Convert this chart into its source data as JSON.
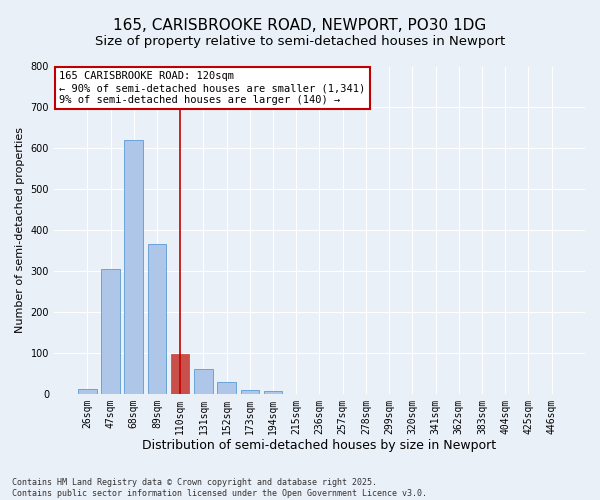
{
  "title_line1": "165, CARISBROOKE ROAD, NEWPORT, PO30 1DG",
  "title_line2": "Size of property relative to semi-detached houses in Newport",
  "xlabel": "Distribution of semi-detached houses by size in Newport",
  "ylabel": "Number of semi-detached properties",
  "categories": [
    "26sqm",
    "47sqm",
    "68sqm",
    "89sqm",
    "110sqm",
    "131sqm",
    "152sqm",
    "173sqm",
    "194sqm",
    "215sqm",
    "236sqm",
    "257sqm",
    "278sqm",
    "299sqm",
    "320sqm",
    "341sqm",
    "362sqm",
    "383sqm",
    "404sqm",
    "425sqm",
    "446sqm"
  ],
  "values": [
    12,
    305,
    620,
    365,
    97,
    60,
    28,
    10,
    8,
    0,
    0,
    0,
    0,
    0,
    0,
    0,
    0,
    0,
    0,
    0,
    0
  ],
  "bar_color": "#aec6e8",
  "bar_edge_color": "#5b9bd5",
  "highlight_bar_index": 4,
  "highlight_bar_color": "#c9504a",
  "highlight_bar_edge_color": "#c9504a",
  "vline_color": "#c00000",
  "ylim": [
    0,
    800
  ],
  "yticks": [
    0,
    100,
    200,
    300,
    400,
    500,
    600,
    700,
    800
  ],
  "background_color": "#eaf0f8",
  "grid_color": "#ffffff",
  "annotation_text": "165 CARISBROOKE ROAD: 120sqm\n← 90% of semi-detached houses are smaller (1,341)\n9% of semi-detached houses are larger (140) →",
  "annotation_box_facecolor": "#ffffff",
  "annotation_box_edgecolor": "#c00000",
  "footer_line1": "Contains HM Land Registry data © Crown copyright and database right 2025.",
  "footer_line2": "Contains public sector information licensed under the Open Government Licence v3.0.",
  "title_fontsize": 11,
  "subtitle_fontsize": 9.5,
  "tick_fontsize": 7,
  "ylabel_fontsize": 8,
  "xlabel_fontsize": 9,
  "annotation_fontsize": 7.5,
  "footer_fontsize": 6.0
}
